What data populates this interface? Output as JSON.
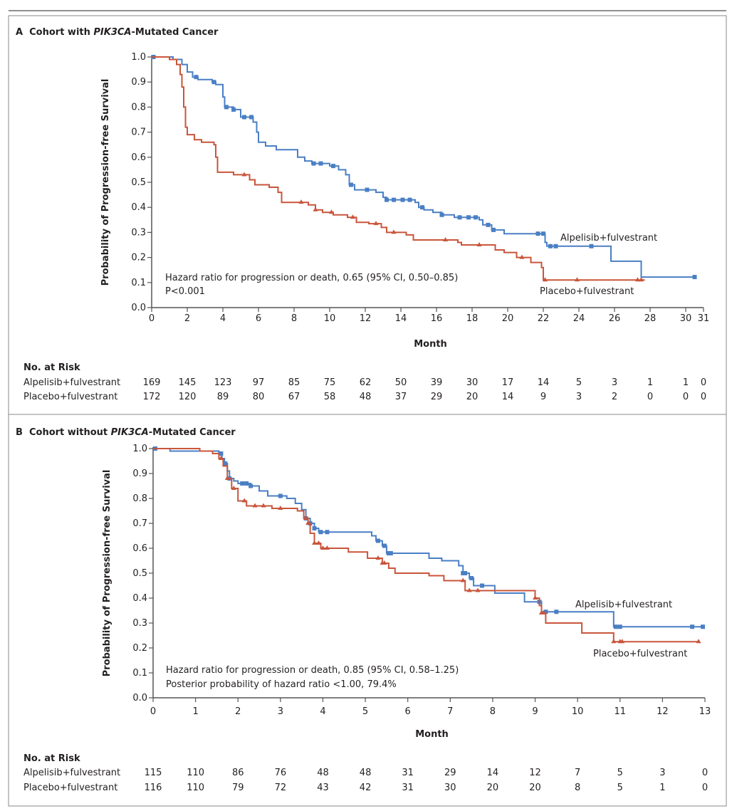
{
  "chart_data": [
    {
      "type": "line",
      "panel": "A",
      "title": {
        "letter": "A",
        "pre": "Cohort with ",
        "gene": "PIK3CA",
        "post": "-Mutated Cancer"
      },
      "ylabel": "Probability of Progression-free Survival",
      "xlabel": "Month",
      "xlim": [
        0,
        31
      ],
      "ylim": [
        0,
        1
      ],
      "xticks": [
        0,
        2,
        4,
        6,
        8,
        10,
        12,
        14,
        16,
        18,
        20,
        22,
        24,
        26,
        28,
        30,
        31
      ],
      "xtick_labels": [
        "0",
        "2",
        "4",
        "6",
        "8",
        "10",
        "12",
        "14",
        "16",
        "18",
        "20",
        "22",
        "24",
        "26",
        "28",
        "30",
        "31"
      ],
      "yticks": [
        1.0,
        0.9,
        0.8,
        0.7,
        0.6,
        0.5,
        0.4,
        0.3,
        0.2,
        0.1,
        0.0
      ],
      "ytick_labels": [
        "1.0",
        "0.9",
        "0.8",
        "0.7",
        "0.6",
        "0.5",
        "0.4",
        "0.3",
        "0.2",
        "0.1",
        "0.0"
      ],
      "annotation": [
        "Hazard ratio for progression or death, 0.65 (95% CI, 0.50–0.85)",
        "P<0.001"
      ],
      "series": [
        {
          "name": "Alpelisib+fulvestrant",
          "color": "#4a7fc4",
          "marker": "square",
          "end": 30.5,
          "steps": [
            [
              0,
              1
            ],
            [
              1.2,
              0.99
            ],
            [
              1.7,
              0.97
            ],
            [
              2,
              0.94
            ],
            [
              2.3,
              0.92
            ],
            [
              2.6,
              0.91
            ],
            [
              3.4,
              0.9
            ],
            [
              3.6,
              0.89
            ],
            [
              4,
              0.84
            ],
            [
              4.1,
              0.8
            ],
            [
              4.6,
              0.79
            ],
            [
              5,
              0.76
            ],
            [
              5.7,
              0.74
            ],
            [
              5.9,
              0.7
            ],
            [
              6,
              0.66
            ],
            [
              6.4,
              0.645
            ],
            [
              7,
              0.63
            ],
            [
              8.2,
              0.6
            ],
            [
              8.6,
              0.585
            ],
            [
              9,
              0.575
            ],
            [
              10,
              0.565
            ],
            [
              10.5,
              0.55
            ],
            [
              10.9,
              0.53
            ],
            [
              11.1,
              0.49
            ],
            [
              11.4,
              0.47
            ],
            [
              12.6,
              0.46
            ],
            [
              13,
              0.44
            ],
            [
              13.2,
              0.43
            ],
            [
              14.8,
              0.42
            ],
            [
              15,
              0.4
            ],
            [
              15.3,
              0.39
            ],
            [
              15.8,
              0.38
            ],
            [
              16.3,
              0.37
            ],
            [
              17,
              0.36
            ],
            [
              18.4,
              0.35
            ],
            [
              18.6,
              0.33
            ],
            [
              19.1,
              0.31
            ],
            [
              19.8,
              0.295
            ],
            [
              22.1,
              0.26
            ],
            [
              22.2,
              0.245
            ],
            [
              25.8,
              0.185
            ],
            [
              27.5,
              0.122
            ]
          ],
          "censored": [
            0.1,
            2.5,
            3.5,
            4.2,
            4.6,
            5.2,
            5.6,
            9.1,
            9.5,
            10.2,
            11.2,
            12.1,
            13.2,
            13.6,
            14.1,
            14.5,
            15.2,
            16.3,
            17.3,
            17.8,
            18.2,
            18.9,
            19.2,
            21.7,
            22.0,
            22.4,
            22.7,
            24.7,
            30.5
          ]
        },
        {
          "name": "Placebo+fulvestrant",
          "color": "#c9553b",
          "marker": "triangle",
          "end": 27.7,
          "steps": [
            [
              0,
              1
            ],
            [
              1,
              0.99
            ],
            [
              1.4,
              0.97
            ],
            [
              1.6,
              0.93
            ],
            [
              1.7,
              0.88
            ],
            [
              1.8,
              0.8
            ],
            [
              1.9,
              0.72
            ],
            [
              2,
              0.69
            ],
            [
              2.4,
              0.67
            ],
            [
              2.8,
              0.66
            ],
            [
              3.5,
              0.65
            ],
            [
              3.6,
              0.6
            ],
            [
              3.7,
              0.54
            ],
            [
              4.6,
              0.53
            ],
            [
              5.5,
              0.51
            ],
            [
              5.8,
              0.49
            ],
            [
              6.6,
              0.48
            ],
            [
              7.1,
              0.46
            ],
            [
              7.3,
              0.42
            ],
            [
              8.8,
              0.41
            ],
            [
              9.2,
              0.39
            ],
            [
              9.6,
              0.38
            ],
            [
              10.2,
              0.37
            ],
            [
              11,
              0.36
            ],
            [
              11.5,
              0.34
            ],
            [
              12.2,
              0.335
            ],
            [
              12.9,
              0.32
            ],
            [
              13.2,
              0.3
            ],
            [
              14.3,
              0.29
            ],
            [
              14.7,
              0.27
            ],
            [
              17.2,
              0.26
            ],
            [
              17.4,
              0.25
            ],
            [
              19.3,
              0.23
            ],
            [
              19.8,
              0.22
            ],
            [
              20.5,
              0.2
            ],
            [
              21.3,
              0.18
            ],
            [
              21.9,
              0.16
            ],
            [
              22,
              0.11
            ]
          ],
          "censored": [
            5.2,
            8.4,
            9.2,
            10.1,
            11.3,
            12.6,
            13.6,
            16.5,
            18.4,
            20.8,
            22.1,
            23.9,
            27.3,
            27.5
          ]
        }
      ],
      "risk": {
        "heading": "No. at Risk",
        "months": [
          0,
          2,
          4,
          6,
          8,
          10,
          12,
          14,
          16,
          18,
          20,
          22,
          24,
          26,
          28,
          30,
          31
        ],
        "rows": [
          {
            "label": "Alpelisib+fulvestrant",
            "values": [
              "169",
              "145",
              "123",
              "97",
              "85",
              "75",
              "62",
              "50",
              "39",
              "30",
              "17",
              "14",
              "5",
              "3",
              "1",
              "1",
              "0"
            ]
          },
          {
            "label": "Placebo+fulvestrant",
            "values": [
              "172",
              "120",
              "89",
              "80",
              "67",
              "58",
              "48",
              "37",
              "29",
              "20",
              "14",
              "9",
              "3",
              "2",
              "0",
              "0",
              "0"
            ]
          }
        ]
      }
    },
    {
      "type": "line",
      "panel": "B",
      "title": {
        "letter": "B",
        "pre": "Cohort without ",
        "gene": "PIK3CA",
        "post": "-Mutated Cancer"
      },
      "ylabel": "Probability of Progression-free Survival",
      "xlabel": "Month",
      "xlim": [
        0,
        13
      ],
      "ylim": [
        0,
        1
      ],
      "xticks": [
        0,
        1,
        2,
        3,
        4,
        5,
        6,
        7,
        8,
        9,
        10,
        11,
        12,
        13
      ],
      "xtick_labels": [
        "0",
        "1",
        "2",
        "3",
        "4",
        "5",
        "6",
        "7",
        "8",
        "9",
        "10",
        "11",
        "12",
        "13"
      ],
      "yticks": [
        1.0,
        0.9,
        0.8,
        0.7,
        0.6,
        0.5,
        0.4,
        0.3,
        0.2,
        0.1,
        0.0
      ],
      "ytick_labels": [
        "1.0",
        "0.9",
        "0.8",
        "0.7",
        "0.6",
        "0.5",
        "0.4",
        "0.3",
        "0.2",
        "0.1",
        "0.0"
      ],
      "annotation": [
        "Hazard ratio for progression or death, 0.85 (95% CI, 0.58–1.25)",
        "Posterior probability of hazard ratio <1.00, 79.4%"
      ],
      "series": [
        {
          "name": "Alpelisib+fulvestrant",
          "color": "#4a7fc4",
          "marker": "square",
          "end": 13,
          "steps": [
            [
              0,
              1
            ],
            [
              0.4,
              0.99
            ],
            [
              1.55,
              0.98
            ],
            [
              1.62,
              0.96
            ],
            [
              1.68,
              0.94
            ],
            [
              1.75,
              0.91
            ],
            [
              1.8,
              0.88
            ],
            [
              1.9,
              0.87
            ],
            [
              2,
              0.86
            ],
            [
              2.3,
              0.85
            ],
            [
              2.5,
              0.83
            ],
            [
              2.7,
              0.81
            ],
            [
              3.15,
              0.8
            ],
            [
              3.35,
              0.78
            ],
            [
              3.5,
              0.755
            ],
            [
              3.6,
              0.72
            ],
            [
              3.7,
              0.7
            ],
            [
              3.8,
              0.68
            ],
            [
              3.9,
              0.665
            ],
            [
              5.15,
              0.65
            ],
            [
              5.25,
              0.63
            ],
            [
              5.4,
              0.61
            ],
            [
              5.5,
              0.58
            ],
            [
              6.5,
              0.56
            ],
            [
              6.8,
              0.55
            ],
            [
              7.2,
              0.53
            ],
            [
              7.3,
              0.5
            ],
            [
              7.45,
              0.48
            ],
            [
              7.55,
              0.45
            ],
            [
              8.05,
              0.42
            ],
            [
              8.75,
              0.385
            ],
            [
              9.15,
              0.345
            ],
            [
              10.85,
              0.285
            ]
          ],
          "censored": [
            0.05,
            1.6,
            1.7,
            1.8,
            2.1,
            2.2,
            2.3,
            3.0,
            3.6,
            3.7,
            3.8,
            3.95,
            4.1,
            5.3,
            5.45,
            5.55,
            5.6,
            7.3,
            7.35,
            7.5,
            7.75,
            9.1,
            9.25,
            9.5,
            10.9,
            11.0,
            12.7,
            12.95
          ]
        },
        {
          "name": "Placebo+fulvestrant",
          "color": "#c9553b",
          "marker": "triangle",
          "end": 12.85,
          "steps": [
            [
              0,
              1
            ],
            [
              1.1,
              0.99
            ],
            [
              1.4,
              0.98
            ],
            [
              1.55,
              0.96
            ],
            [
              1.65,
              0.93
            ],
            [
              1.75,
              0.88
            ],
            [
              1.85,
              0.84
            ],
            [
              2,
              0.79
            ],
            [
              2.2,
              0.77
            ],
            [
              2.8,
              0.76
            ],
            [
              3.4,
              0.75
            ],
            [
              3.55,
              0.72
            ],
            [
              3.65,
              0.7
            ],
            [
              3.7,
              0.66
            ],
            [
              3.8,
              0.62
            ],
            [
              3.95,
              0.6
            ],
            [
              4.6,
              0.585
            ],
            [
              5.05,
              0.56
            ],
            [
              5.4,
              0.54
            ],
            [
              5.55,
              0.52
            ],
            [
              5.7,
              0.5
            ],
            [
              6.5,
              0.49
            ],
            [
              6.85,
              0.47
            ],
            [
              7.35,
              0.43
            ],
            [
              9,
              0.4
            ],
            [
              9.1,
              0.37
            ],
            [
              9.15,
              0.34
            ],
            [
              9.25,
              0.3
            ],
            [
              10.1,
              0.26
            ],
            [
              10.85,
              0.225
            ]
          ],
          "censored": [
            1.6,
            1.75,
            1.9,
            2.15,
            2.4,
            2.6,
            3.0,
            3.6,
            3.65,
            3.8,
            3.9,
            4.0,
            4.1,
            5.3,
            5.4,
            5.45,
            7.3,
            7.45,
            7.65,
            9.0,
            9.15,
            9.2,
            10.85,
            11.0,
            11.05,
            12.85
          ]
        }
      ],
      "risk": {
        "heading": "No. at Risk",
        "months": [
          0,
          1,
          2,
          3,
          4,
          5,
          6,
          7,
          8,
          9,
          10,
          11,
          12,
          13
        ],
        "rows": [
          {
            "label": "Alpelisib+fulvestrant",
            "values": [
              "115",
              "110",
              "86",
              "76",
              "48",
              "48",
              "31",
              "29",
              "14",
              "12",
              "7",
              "5",
              "3",
              "0"
            ]
          },
          {
            "label": "Placebo+fulvestrant",
            "values": [
              "116",
              "110",
              "79",
              "72",
              "43",
              "42",
              "31",
              "30",
              "20",
              "20",
              "8",
              "5",
              "1",
              "0"
            ]
          }
        ]
      }
    }
  ]
}
